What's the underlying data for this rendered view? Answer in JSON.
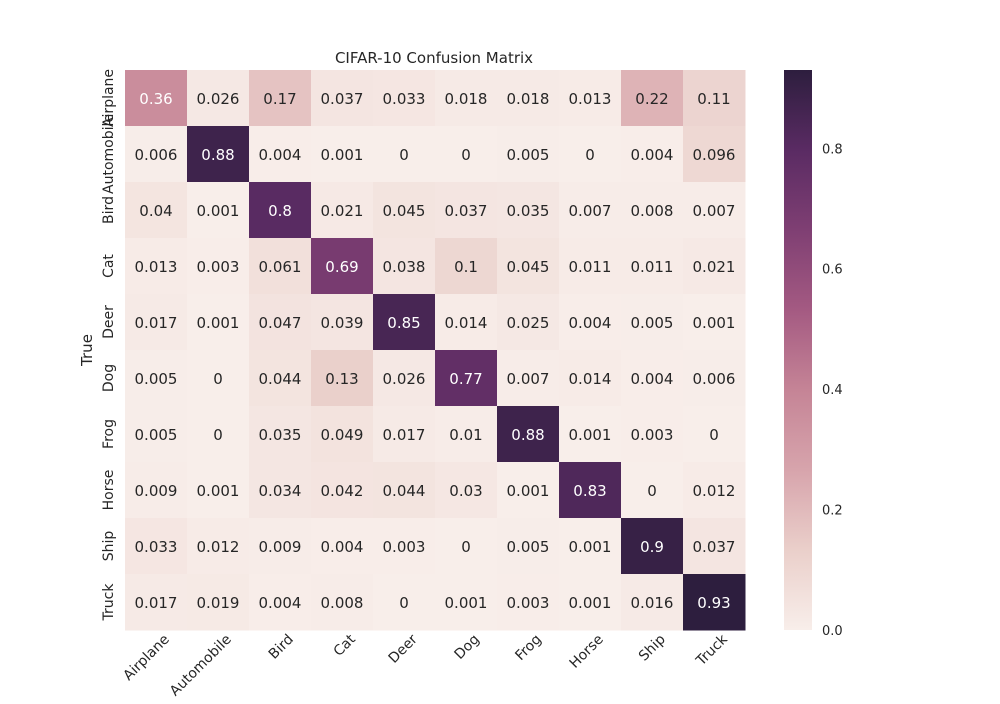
{
  "chart_data": {
    "type": "heatmap",
    "title": "CIFAR-10 Confusion Matrix",
    "xlabel": "",
    "ylabel": "True",
    "x_categories": [
      "Airplane",
      "Automobile",
      "Bird",
      "Cat",
      "Deer",
      "Dog",
      "Frog",
      "Horse",
      "Ship",
      "Truck"
    ],
    "y_categories": [
      "Airplane",
      "Automobile",
      "Bird",
      "Cat",
      "Deer",
      "Dog",
      "Frog",
      "Horse",
      "Ship",
      "Truck"
    ],
    "values": [
      [
        "0.36",
        "0.026",
        "0.17",
        "0.037",
        "0.033",
        "0.018",
        "0.018",
        "0.013",
        "0.22",
        "0.11"
      ],
      [
        "0.006",
        "0.88",
        "0.004",
        "0.001",
        "0",
        "0",
        "0.005",
        "0",
        "0.004",
        "0.096"
      ],
      [
        "0.04",
        "0.001",
        "0.8",
        "0.021",
        "0.045",
        "0.037",
        "0.035",
        "0.007",
        "0.008",
        "0.007"
      ],
      [
        "0.013",
        "0.003",
        "0.061",
        "0.69",
        "0.038",
        "0.1",
        "0.045",
        "0.011",
        "0.011",
        "0.021"
      ],
      [
        "0.017",
        "0.001",
        "0.047",
        "0.039",
        "0.85",
        "0.014",
        "0.025",
        "0.004",
        "0.005",
        "0.001"
      ],
      [
        "0.005",
        "0",
        "0.044",
        "0.13",
        "0.026",
        "0.77",
        "0.007",
        "0.014",
        "0.004",
        "0.006"
      ],
      [
        "0.005",
        "0",
        "0.035",
        "0.049",
        "0.017",
        "0.01",
        "0.88",
        "0.001",
        "0.003",
        "0"
      ],
      [
        "0.009",
        "0.001",
        "0.034",
        "0.042",
        "0.044",
        "0.03",
        "0.001",
        "0.83",
        "0",
        "0.012"
      ],
      [
        "0.033",
        "0.012",
        "0.009",
        "0.004",
        "0.003",
        "0",
        "0.005",
        "0.001",
        "0.9",
        "0.037"
      ],
      [
        "0.017",
        "0.019",
        "0.004",
        "0.008",
        "0",
        "0.001",
        "0.003",
        "0.001",
        "0.016",
        "0.93"
      ]
    ],
    "vmin": 0,
    "vmax": 0.93,
    "colorbar_ticks": [
      "0.0",
      "0.2",
      "0.4",
      "0.6",
      "0.8"
    ],
    "colormap": [
      "#f8eeea",
      "#eacfca",
      "#d7a4ac",
      "#c58496",
      "#a45a82",
      "#7f3f73",
      "#5a2b63",
      "#2d1e3e"
    ],
    "grid": false,
    "legend": "colorbar-right"
  }
}
